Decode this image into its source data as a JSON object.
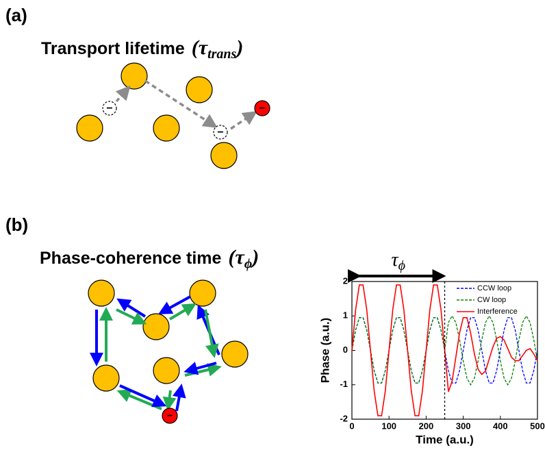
{
  "panel_a": {
    "label": "(a)",
    "title": "Transport lifetime",
    "symbol_open": "(τ",
    "symbol_sub": "trans",
    "symbol_close": ")",
    "electron_sign": "−"
  },
  "panel_b": {
    "label": "(b)",
    "title": "Phase-coherence time",
    "symbol_open": "(τ",
    "symbol_sub": "ϕ",
    "symbol_close": ")",
    "electron_sign": "−"
  },
  "chart_data": {
    "type": "line",
    "xlabel": "Time (a.u.)",
    "ylabel": "Phase (a.u.)",
    "span_label": "τ",
    "span_sub": "ϕ",
    "vline": 250,
    "x": [
      0,
      10,
      20,
      30,
      40,
      50,
      60,
      70,
      80,
      90,
      100,
      110,
      120,
      130,
      140,
      150,
      160,
      170,
      180,
      190,
      200,
      210,
      220,
      230,
      240,
      250,
      260,
      270,
      280,
      290,
      300,
      310,
      320,
      330,
      340,
      350,
      360,
      370,
      380,
      390,
      400,
      410,
      420,
      430,
      440,
      450,
      460,
      470,
      480,
      490,
      500
    ],
    "series": [
      {
        "name": "CCW loop",
        "color": "#0000ff",
        "dash": true,
        "values": [
          0,
          0.59,
          0.95,
          0.95,
          0.59,
          0,
          -0.59,
          -0.95,
          -0.95,
          -0.59,
          0,
          0.59,
          0.95,
          0.95,
          0.59,
          0,
          -0.59,
          -0.95,
          -0.95,
          -0.59,
          0,
          0.59,
          0.95,
          0.95,
          0.59,
          0,
          -0.59,
          -0.95,
          -0.95,
          -0.59,
          0,
          0.59,
          0.95,
          0.95,
          0.59,
          0,
          -0.59,
          -0.95,
          -0.95,
          -0.59,
          0,
          0.59,
          0.95,
          0.95,
          0.59,
          0,
          -0.59,
          -0.95,
          -0.95,
          -0.59,
          0
        ]
      },
      {
        "name": "CW loop",
        "color": "#008000",
        "dash": true,
        "values": [
          0,
          0.59,
          0.95,
          0.95,
          0.59,
          0,
          -0.59,
          -0.95,
          -0.95,
          -0.59,
          0,
          0.59,
          0.95,
          0.95,
          0.59,
          0,
          -0.59,
          -0.95,
          -0.95,
          -0.59,
          0,
          0.59,
          0.95,
          0.95,
          0.59,
          0,
          0.81,
          1,
          0.81,
          0.31,
          -0.31,
          -0.81,
          -1,
          -0.81,
          -0.31,
          0.31,
          0.81,
          1,
          0.81,
          0.31,
          -0.31,
          -0.81,
          -1,
          -0.81,
          -0.31,
          0.31,
          0.81,
          1,
          0.81,
          0.31,
          -0.31
        ]
      },
      {
        "name": "Interference",
        "color": "#ff0000",
        "dash": false,
        "values": [
          0,
          1.18,
          1.9,
          1.9,
          1.18,
          0,
          -1.18,
          -1.9,
          -1.9,
          -1.18,
          0,
          1.18,
          1.9,
          1.9,
          1.18,
          0,
          -1.18,
          -1.9,
          -1.9,
          -1.18,
          0,
          1.18,
          1.9,
          1.9,
          1.18,
          0,
          -1.2,
          -0.9,
          -0.2,
          0.5,
          0.95,
          0.95,
          0.5,
          -0.1,
          -0.55,
          -0.7,
          -0.6,
          -0.25,
          0.1,
          0.35,
          0.4,
          0.3,
          0.05,
          -0.2,
          -0.3,
          -0.3,
          -0.15,
          0,
          0.05,
          -0.1,
          -0.3
        ]
      }
    ],
    "xlim": [
      0,
      500
    ],
    "xticks": [
      0,
      100,
      200,
      300,
      400,
      500
    ],
    "ylim": [
      -2,
      2
    ],
    "yticks": [
      -2,
      -1,
      0,
      1,
      2
    ],
    "legend": "upper right"
  }
}
